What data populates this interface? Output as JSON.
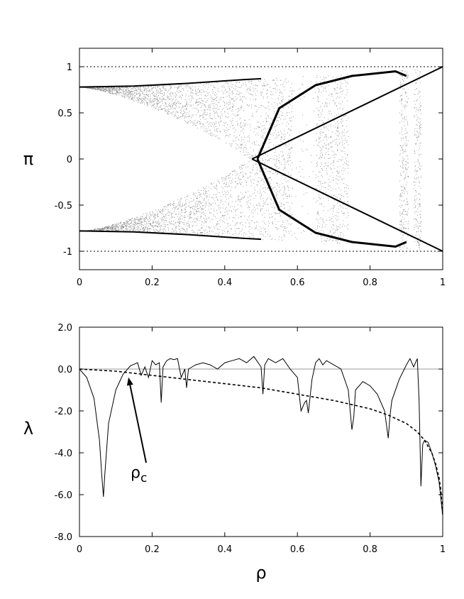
{
  "chart_data": [
    {
      "type": "scatter",
      "title": "",
      "xlabel": "",
      "ylabel": "π",
      "xlim": [
        0,
        1
      ],
      "ylim": [
        -1.2,
        1.2
      ],
      "xticks": [
        "0",
        "0.2",
        "0.4",
        "0.6",
        "0.8",
        "1"
      ],
      "xtick_values": [
        0,
        0.2,
        0.4,
        0.6,
        0.8,
        1
      ],
      "yticks": [
        "-1",
        "-0.5",
        "0",
        "0.5",
        "1"
      ],
      "ytick_values": [
        -1,
        -0.5,
        0,
        0.5,
        1
      ],
      "reference_lines": [
        {
          "y": 1,
          "style": "dotted"
        },
        {
          "y": -1,
          "style": "dotted"
        }
      ],
      "grid": false,
      "legend": "none",
      "series": [
        {
          "kind": "bifurcation",
          "upper_branch": {
            "x": [
              0,
              0.15,
              0.3,
              0.45,
              0.5
            ],
            "y": [
              0.78,
              0.79,
              0.82,
              0.86,
              0.87
            ]
          },
          "lower_branch": {
            "x": [
              0,
              0.15,
              0.3,
              0.45,
              0.5
            ],
            "y": [
              -0.78,
              -0.79,
              -0.82,
              -0.86,
              -0.87
            ]
          },
          "crossing_point": {
            "x": 0.475,
            "y": 0
          },
          "rising_line": {
            "x": [
              0.475,
              1
            ],
            "y": [
              0,
              1
            ]
          },
          "falling_line": {
            "x": [
              0.475,
              1
            ],
            "y": [
              0,
              -1
            ]
          },
          "outer_arc_upper": {
            "x": [
              0.49,
              0.55,
              0.65,
              0.75,
              0.87,
              0.9
            ],
            "y": [
              0.0,
              0.55,
              0.8,
              0.9,
              0.95,
              0.9
            ]
          },
          "outer_arc_lower": {
            "x": [
              0.49,
              0.55,
              0.65,
              0.75,
              0.87,
              0.9
            ],
            "y": [
              0.0,
              -0.55,
              -0.8,
              -0.9,
              -0.95,
              -0.9
            ]
          }
        }
      ]
    },
    {
      "type": "line",
      "title": "",
      "xlabel": "ρ",
      "ylabel": "λ",
      "xlim": [
        0,
        1
      ],
      "ylim": [
        -8,
        2
      ],
      "xticks": [
        "0",
        "0.2",
        "0.4",
        "0.6",
        "0.8",
        "1"
      ],
      "xtick_values": [
        0,
        0.2,
        0.4,
        0.6,
        0.8,
        1
      ],
      "yticks": [
        "2.0",
        "0.0",
        "-2.0",
        "-4.0",
        "-6.0",
        "-8.0"
      ],
      "ytick_values": [
        2,
        0,
        -2,
        -4,
        -6,
        -8
      ],
      "reference_lines": [
        {
          "y": 0,
          "style": "solid-gray"
        }
      ],
      "grid": false,
      "legend": "none",
      "annotation": {
        "text_main": "ρ",
        "text_sub": "c",
        "arrow_to": {
          "x": 0.135,
          "y": -0.4
        }
      },
      "series": [
        {
          "style": "solid",
          "x": [
            0,
            0.02,
            0.04,
            0.055,
            0.062,
            0.066,
            0.07,
            0.08,
            0.1,
            0.12,
            0.14,
            0.16,
            0.17,
            0.18,
            0.19,
            0.2,
            0.21,
            0.22,
            0.225,
            0.23,
            0.24,
            0.25,
            0.26,
            0.27,
            0.28,
            0.29,
            0.295,
            0.3,
            0.31,
            0.32,
            0.34,
            0.36,
            0.38,
            0.4,
            0.42,
            0.44,
            0.46,
            0.48,
            0.5,
            0.505,
            0.51,
            0.52,
            0.54,
            0.56,
            0.58,
            0.6,
            0.61,
            0.62,
            0.625,
            0.63,
            0.64,
            0.65,
            0.66,
            0.67,
            0.68,
            0.7,
            0.72,
            0.74,
            0.75,
            0.755,
            0.76,
            0.78,
            0.8,
            0.82,
            0.84,
            0.85,
            0.855,
            0.86,
            0.88,
            0.9,
            0.91,
            0.92,
            0.93,
            0.935,
            0.94,
            0.945,
            0.95,
            0.96,
            0.97,
            0.98,
            0.99,
            1
          ],
          "y": [
            0,
            -0.4,
            -1.4,
            -3.4,
            -5.2,
            -6.1,
            -5.0,
            -2.6,
            -1.0,
            -0.25,
            0.15,
            0.3,
            -0.3,
            0.1,
            -0.4,
            0.4,
            0.2,
            0.3,
            -1.6,
            0.1,
            0.4,
            0.5,
            0.45,
            0.5,
            -0.4,
            0.0,
            -0.9,
            0.0,
            0.1,
            0.2,
            0.3,
            0.2,
            0.0,
            0.3,
            0.4,
            0.5,
            0.3,
            0.6,
            0.1,
            -1.2,
            0.2,
            0.5,
            0.3,
            0.5,
            0.0,
            -0.4,
            -2.0,
            -1.6,
            -1.5,
            -2.1,
            -0.5,
            0.3,
            0.5,
            0.2,
            0.4,
            0.2,
            0.0,
            -1.0,
            -2.9,
            -2.3,
            -1.0,
            -0.6,
            -0.8,
            -1.2,
            -2.0,
            -3.3,
            -2.2,
            -1.5,
            -0.5,
            0.2,
            0.5,
            0.1,
            0.5,
            -1.5,
            -5.6,
            -3.6,
            -3.4,
            -3.5,
            -4.0,
            -4.6,
            -5.4,
            -7.0
          ]
        },
        {
          "style": "dashed",
          "x": [
            0,
            0.1,
            0.2,
            0.3,
            0.4,
            0.5,
            0.6,
            0.7,
            0.8,
            0.85,
            0.9,
            0.93,
            0.95,
            0.97,
            0.98,
            0.99,
            0.995,
            1
          ],
          "y": [
            0,
            -0.1,
            -0.3,
            -0.5,
            -0.7,
            -0.9,
            -1.2,
            -1.5,
            -1.9,
            -2.2,
            -2.6,
            -3.0,
            -3.4,
            -4.0,
            -4.5,
            -5.2,
            -5.8,
            -7.0
          ]
        }
      ]
    }
  ]
}
